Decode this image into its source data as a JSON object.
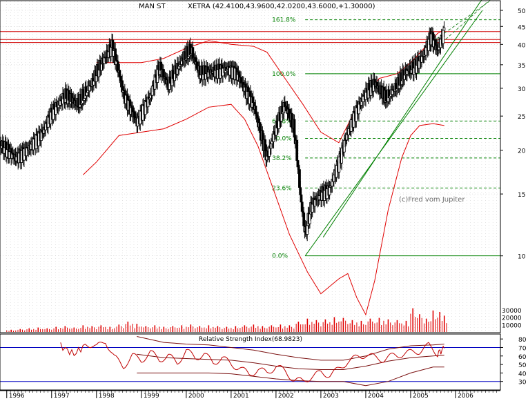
{
  "colors": {
    "background": "#ffffff",
    "frame": "#000000",
    "grid": "#b8b8b8",
    "candle": "#000000",
    "bollinger": "#e00000",
    "hline": "#d00000",
    "fibo": "#008000",
    "trend": "#008000",
    "volume": "#e00000",
    "rsi_ref": "#0000c0",
    "rsi_line": "#7a1010"
  },
  "chart_data": [
    {
      "type": "candlestick",
      "title": "MAN ST",
      "subtitle": "XETRA (42.4100,43.9600,42.0200,43.6000,+1.30000)",
      "watermark": "(c)Fred vom Jupiter",
      "scale": "log",
      "ylim": [
        6.5,
        54
      ],
      "y_ticks": [
        50,
        45,
        40,
        35,
        30,
        25,
        20,
        15,
        10
      ],
      "xlim": [
        1995.85,
        2007.0
      ],
      "x_ticks": [
        "1996",
        "1997",
        "1998",
        "1999",
        "2000",
        "2001",
        "2002",
        "2003",
        "2004",
        "2005",
        "2006"
      ],
      "horizontal_lines": [
        43.5,
        41.3,
        40.5
      ],
      "fibonacci": [
        {
          "label": "161.8%",
          "value": 47.0
        },
        {
          "label": "100.0%",
          "value": 33.0
        },
        {
          "label": "61.8%",
          "value": 24.2
        },
        {
          "label": "50.0%",
          "value": 21.6
        },
        {
          "label": "38.2%",
          "value": 19.0
        },
        {
          "label": "23.6%",
          "value": 15.6
        },
        {
          "label": "0.0%",
          "value": 10.0
        }
      ],
      "fib_start": 2002.65,
      "trendlines": [
        {
          "x": [
            2002.65,
            2006.6
          ],
          "y": [
            10.0,
            50.0
          ],
          "style": "solid"
        },
        {
          "x": [
            2003.05,
            2006.6
          ],
          "y": [
            11.3,
            54.0
          ],
          "style": "solid"
        },
        {
          "x": [
            2005.4,
            2006.75
          ],
          "y": [
            40.0,
            53.0
          ],
          "style": "dashed"
        },
        {
          "x": [
            2005.7,
            2006.8
          ],
          "y": [
            40.5,
            54.0
          ],
          "style": "dashed"
        }
      ],
      "close_anchors": [
        [
          1995.85,
          20.8
        ],
        [
          1996.2,
          19.0
        ],
        [
          1996.5,
          20.3
        ],
        [
          1996.8,
          22.5
        ],
        [
          1997.0,
          25.5
        ],
        [
          1997.3,
          28.5
        ],
        [
          1997.6,
          27.0
        ],
        [
          1997.9,
          31.0
        ],
        [
          1998.2,
          37.0
        ],
        [
          1998.35,
          39.5
        ],
        [
          1998.6,
          29.0
        ],
        [
          1998.9,
          24.0
        ],
        [
          1999.2,
          28.5
        ],
        [
          1999.4,
          34.5
        ],
        [
          1999.6,
          30.5
        ],
        [
          1999.9,
          36.0
        ],
        [
          2000.1,
          38.5
        ],
        [
          2000.3,
          33.0
        ],
        [
          2000.6,
          33.5
        ],
        [
          2000.9,
          34.0
        ],
        [
          2001.1,
          33.5
        ],
        [
          2001.3,
          30.0
        ],
        [
          2001.5,
          27.0
        ],
        [
          2001.65,
          22.5
        ],
        [
          2001.8,
          19.0
        ],
        [
          2002.0,
          23.0
        ],
        [
          2002.2,
          27.0
        ],
        [
          2002.4,
          23.0
        ],
        [
          2002.55,
          14.5
        ],
        [
          2002.65,
          11.5
        ],
        [
          2002.8,
          14.0
        ],
        [
          2003.0,
          15.0
        ],
        [
          2003.2,
          15.5
        ],
        [
          2003.4,
          18.5
        ],
        [
          2003.6,
          22.5
        ],
        [
          2003.8,
          26.0
        ],
        [
          2004.0,
          29.0
        ],
        [
          2004.2,
          31.0
        ],
        [
          2004.45,
          28.0
        ],
        [
          2004.7,
          30.5
        ],
        [
          2004.9,
          33.5
        ],
        [
          2005.1,
          34.5
        ],
        [
          2005.3,
          37.5
        ],
        [
          2005.45,
          42.5
        ],
        [
          2005.6,
          38.5
        ],
        [
          2005.75,
          43.6
        ]
      ],
      "boll_upper": [
        [
          1998.0,
          35.5
        ],
        [
          1998.5,
          35.5
        ],
        [
          1999.0,
          35.5
        ],
        [
          1999.5,
          36.5
        ],
        [
          2000.0,
          39.0
        ],
        [
          2000.5,
          41.0
        ],
        [
          2001.0,
          40.0
        ],
        [
          2001.5,
          39.5
        ],
        [
          2001.8,
          38.0
        ],
        [
          2002.2,
          32.0
        ],
        [
          2002.6,
          27.0
        ],
        [
          2003.0,
          22.5
        ],
        [
          2003.4,
          21.0
        ],
        [
          2003.8,
          26.5
        ],
        [
          2004.3,
          32.0
        ],
        [
          2004.7,
          33.0
        ],
        [
          2005.0,
          35.5
        ],
        [
          2005.3,
          39.0
        ],
        [
          2005.6,
          43.0
        ],
        [
          2005.75,
          44.0
        ]
      ],
      "boll_lower": [
        [
          1997.7,
          17.0
        ],
        [
          1998.0,
          18.5
        ],
        [
          1998.5,
          22.0
        ],
        [
          1999.0,
          22.5
        ],
        [
          1999.5,
          23.0
        ],
        [
          2000.0,
          24.5
        ],
        [
          2000.5,
          26.5
        ],
        [
          2001.0,
          27.0
        ],
        [
          2001.3,
          24.5
        ],
        [
          2001.6,
          20.5
        ],
        [
          2001.9,
          16.0
        ],
        [
          2002.3,
          11.5
        ],
        [
          2002.7,
          9.0
        ],
        [
          2003.0,
          7.8
        ],
        [
          2003.4,
          8.6
        ],
        [
          2003.6,
          8.9
        ],
        [
          2003.8,
          7.6
        ],
        [
          2004.0,
          6.8
        ],
        [
          2004.2,
          8.5
        ],
        [
          2004.5,
          13.5
        ],
        [
          2004.8,
          19.0
        ],
        [
          2005.0,
          22.0
        ],
        [
          2005.2,
          23.5
        ],
        [
          2005.5,
          23.8
        ],
        [
          2005.75,
          23.5
        ]
      ],
      "boll_mid": [
        [
          1998.0,
          29.0
        ],
        [
          1999.0,
          29.0
        ],
        [
          1999.5,
          30.0
        ],
        [
          2000.0,
          32.0
        ],
        [
          2000.5,
          34.0
        ],
        [
          2001.0,
          33.5
        ],
        [
          2001.5,
          30.0
        ],
        [
          2001.9,
          25.0
        ],
        [
          2002.3,
          21.5
        ],
        [
          2002.7,
          17.5
        ],
        [
          2003.1,
          14.0
        ],
        [
          2003.5,
          15.5
        ],
        [
          2003.9,
          19.5
        ],
        [
          2004.3,
          24.5
        ],
        [
          2004.7,
          27.0
        ],
        [
          2005.0,
          29.5
        ],
        [
          2005.3,
          31.5
        ],
        [
          2005.75,
          34.0
        ]
      ]
    },
    {
      "type": "bar",
      "name": "volume",
      "y_ticks": [
        30000,
        20000,
        10000
      ],
      "ylim": [
        0,
        40000
      ],
      "bars": [
        [
          1996.1,
          3000
        ],
        [
          1996.3,
          4000
        ],
        [
          1996.5,
          5000
        ],
        [
          1996.7,
          6000
        ],
        [
          1996.9,
          5000
        ],
        [
          1997.1,
          7000
        ],
        [
          1997.3,
          8000
        ],
        [
          1997.5,
          6000
        ],
        [
          1997.7,
          9000
        ],
        [
          1997.9,
          8000
        ],
        [
          1998.1,
          9000
        ],
        [
          1998.3,
          7000
        ],
        [
          1998.5,
          10000
        ],
        [
          1998.7,
          14000
        ],
        [
          1998.9,
          11000
        ],
        [
          1999.1,
          8000
        ],
        [
          1999.3,
          9000
        ],
        [
          1999.5,
          7000
        ],
        [
          1999.7,
          8000
        ],
        [
          1999.9,
          9000
        ],
        [
          2000.1,
          10000
        ],
        [
          2000.3,
          8000
        ],
        [
          2000.5,
          9000
        ],
        [
          2000.7,
          8000
        ],
        [
          2000.9,
          7000
        ],
        [
          2001.1,
          8000
        ],
        [
          2001.3,
          9000
        ],
        [
          2001.5,
          10000
        ],
        [
          2001.7,
          8000
        ],
        [
          2001.9,
          9000
        ],
        [
          2002.1,
          10000
        ],
        [
          2002.3,
          9000
        ],
        [
          2002.5,
          14000
        ],
        [
          2002.7,
          18000
        ],
        [
          2002.9,
          16000
        ],
        [
          2003.1,
          17000
        ],
        [
          2003.3,
          20000
        ],
        [
          2003.5,
          19000
        ],
        [
          2003.7,
          16000
        ],
        [
          2003.9,
          15000
        ],
        [
          2004.1,
          18000
        ],
        [
          2004.3,
          19000
        ],
        [
          2004.5,
          17000
        ],
        [
          2004.7,
          16000
        ],
        [
          2004.9,
          15000
        ],
        [
          2005.05,
          32000
        ],
        [
          2005.2,
          24000
        ],
        [
          2005.35,
          18000
        ],
        [
          2005.5,
          29000
        ],
        [
          2005.65,
          27000
        ],
        [
          2005.75,
          22000
        ]
      ]
    },
    {
      "type": "line",
      "title": "Relative Strength Index(68.9823)",
      "ylim": [
        20,
        85
      ],
      "y_ticks": [
        80,
        70,
        60,
        50,
        40,
        30
      ],
      "ref_lines": [
        70,
        30
      ],
      "rsi": [
        [
          1997.2,
          72
        ],
        [
          1997.5,
          62
        ],
        [
          1997.8,
          75
        ],
        [
          1998.0,
          70
        ],
        [
          1998.2,
          78
        ],
        [
          1998.4,
          58
        ],
        [
          1998.6,
          48
        ],
        [
          1998.8,
          60
        ],
        [
          1999.0,
          55
        ],
        [
          1999.2,
          64
        ],
        [
          1999.4,
          56
        ],
        [
          1999.6,
          60
        ],
        [
          1999.8,
          52
        ],
        [
          2000.0,
          66
        ],
        [
          2000.2,
          58
        ],
        [
          2000.4,
          62
        ],
        [
          2000.6,
          52
        ],
        [
          2000.8,
          58
        ],
        [
          2001.0,
          50
        ],
        [
          2001.2,
          46
        ],
        [
          2001.4,
          38
        ],
        [
          2001.6,
          44
        ],
        [
          2001.8,
          40
        ],
        [
          2002.0,
          48
        ],
        [
          2002.2,
          42
        ],
        [
          2002.4,
          32
        ],
        [
          2002.6,
          30
        ],
        [
          2002.8,
          36
        ],
        [
          2003.0,
          40
        ],
        [
          2003.2,
          38
        ],
        [
          2003.4,
          44
        ],
        [
          2003.6,
          54
        ],
        [
          2003.8,
          58
        ],
        [
          2004.0,
          62
        ],
        [
          2004.2,
          58
        ],
        [
          2004.4,
          56
        ],
        [
          2004.6,
          60
        ],
        [
          2004.8,
          62
        ],
        [
          2005.0,
          64
        ],
        [
          2005.2,
          66
        ],
        [
          2005.4,
          72
        ],
        [
          2005.6,
          63
        ],
        [
          2005.75,
          69
        ]
      ],
      "band_upper": [
        [
          1998.9,
          83
        ],
        [
          1999.5,
          76
        ],
        [
          2000.0,
          74
        ],
        [
          2000.5,
          73
        ],
        [
          2001.0,
          70
        ],
        [
          2001.5,
          67
        ],
        [
          2002.0,
          62
        ],
        [
          2002.5,
          58
        ],
        [
          2003.0,
          55
        ],
        [
          2003.5,
          55
        ],
        [
          2004.0,
          60
        ],
        [
          2004.5,
          68
        ],
        [
          2005.0,
          72
        ],
        [
          2005.5,
          73
        ],
        [
          2005.75,
          74
        ]
      ],
      "band_lower": [
        [
          1998.9,
          40
        ],
        [
          1999.5,
          40
        ],
        [
          2000.0,
          40
        ],
        [
          2000.5,
          40
        ],
        [
          2001.0,
          39
        ],
        [
          2001.5,
          36
        ],
        [
          2002.0,
          33
        ],
        [
          2002.5,
          31
        ],
        [
          2003.0,
          30
        ],
        [
          2003.5,
          30
        ],
        [
          2004.0,
          25
        ],
        [
          2004.5,
          30
        ],
        [
          2005.0,
          40
        ],
        [
          2005.5,
          47
        ],
        [
          2005.75,
          47
        ]
      ],
      "band_mid": [
        [
          1998.9,
          62
        ],
        [
          1999.5,
          58
        ],
        [
          2000.0,
          57
        ],
        [
          2000.5,
          56
        ],
        [
          2001.0,
          55
        ],
        [
          2001.5,
          52
        ],
        [
          2002.0,
          48
        ],
        [
          2002.5,
          45
        ],
        [
          2003.0,
          44
        ],
        [
          2003.5,
          44
        ],
        [
          2004.0,
          48
        ],
        [
          2004.5,
          54
        ],
        [
          2005.0,
          58
        ],
        [
          2005.5,
          60
        ],
        [
          2005.75,
          61
        ]
      ]
    }
  ]
}
